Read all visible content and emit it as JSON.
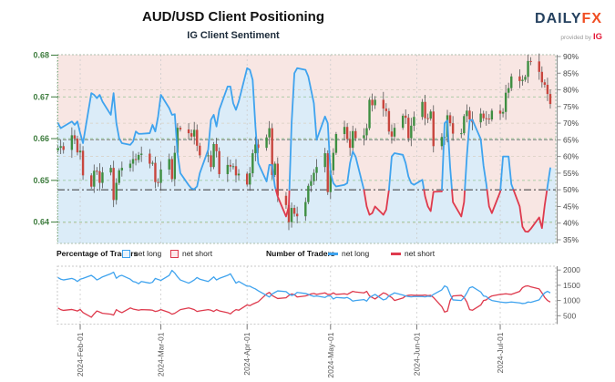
{
  "header": {
    "title": "AUD/USD Client Positioning",
    "subtitle": "IG Client Sentiment",
    "logo": {
      "brand_primary": "DAILY",
      "brand_accent": "FX",
      "provided_by": "provided by",
      "provider": "IG"
    }
  },
  "legend": {
    "percentage_title": "Percentage of Traders",
    "number_title": "Number of Traders",
    "net_long": "net long",
    "net_short": "net short"
  },
  "axes": {
    "price_ticks": [
      "0.68",
      "0.67",
      "0.66",
      "0.65",
      "0.64"
    ],
    "pct_ticks": [
      "90%",
      "85%",
      "80%",
      "75%",
      "70%",
      "65%",
      "60%",
      "55%",
      "50%",
      "45%",
      "40%",
      "35%"
    ],
    "traders_ticks": [
      "2000",
      "1500",
      "1000",
      "500"
    ],
    "date_ticks": [
      "2024-Feb-01",
      "2024-Mar-01",
      "2024-Apr-01",
      "2024-May-01",
      "2024-Jun-01",
      "2024-Jul-01"
    ]
  },
  "colors": {
    "line_long": "#3fa3ee",
    "line_short": "#de3a4d",
    "candle_up": "#3e8e41",
    "candle_down": "#c8463e",
    "wick": "#555555",
    "fill_above": "#f8e6e3",
    "fill_below": "#dbecf8",
    "grid_price": "#93c493",
    "grid_pct": "#d8cfc2",
    "ref_50": "#4a4a4a",
    "ref_65": "#9a9a9a",
    "axis_price": "#3c7b3c",
    "axis_pct": "#444444",
    "axis_traders": "#555555",
    "axis_dates": "#555555",
    "brand_navy": "#25415f",
    "brand_orange": "#f04e23",
    "provider_red": "#e31837"
  },
  "chart_data": {
    "type": "mixed",
    "title": "AUD/USD Client Positioning",
    "subtitle": "IG Client Sentiment",
    "start_date": "2024-01-24",
    "x_month_ticks": [
      "2024-02-01",
      "2024-03-01",
      "2024-04-01",
      "2024-05-01",
      "2024-06-01",
      "2024-07-01"
    ],
    "price_axis": {
      "side": "left",
      "ticks": [
        0.68,
        0.67,
        0.66,
        0.65,
        0.64
      ],
      "ylim": [
        0.6352,
        0.6805
      ]
    },
    "pct_axis": {
      "side": "right",
      "ticks": [
        90,
        85,
        80,
        75,
        70,
        65,
        60,
        55,
        50,
        45,
        40,
        35
      ],
      "ylim": [
        33.9,
        90.5
      ],
      "ref_line_dash_dot": 50,
      "ref_line_gray_dashed": 65
    },
    "traders_axis": {
      "side": "right",
      "ticks": [
        2000,
        1500,
        1000,
        500
      ],
      "ylim": [
        230,
        2120
      ]
    },
    "price_series": {
      "type": "candlestick",
      "name": "AUD/USD daily price",
      "first_open": 0.6572,
      "closes": [
        0.6578,
        0.6582,
        0.6573,
        0.6608,
        0.66,
        0.6567,
        0.6571,
        0.6512,
        0.6485,
        0.6523,
        0.6522,
        0.6494,
        0.6519,
        0.653,
        0.6453,
        0.6494,
        0.6524,
        0.653,
        0.654,
        0.6551,
        0.6549,
        0.6561,
        0.6564,
        0.654,
        0.6542,
        0.6496,
        0.6494,
        0.6526,
        0.6551,
        0.6503,
        0.6566,
        0.6626,
        0.6622,
        0.6613,
        0.6605,
        0.6621,
        0.6583,
        0.656,
        0.656,
        0.6532,
        0.6587,
        0.657,
        0.6515,
        0.6537,
        0.6533,
        0.6534,
        0.6512,
        0.6516,
        0.649,
        0.6517,
        0.6565,
        0.6586,
        0.6578,
        0.6603,
        0.6625,
        0.6513,
        0.654,
        0.6463,
        0.6441,
        0.64,
        0.6434,
        0.642,
        0.6414,
        0.6448,
        0.6487,
        0.6498,
        0.6518,
        0.6532,
        0.6565,
        0.6472,
        0.6524,
        0.6566,
        0.6611,
        0.6628,
        0.6599,
        0.6578,
        0.6618,
        0.6601,
        0.6608,
        0.6625,
        0.6693,
        0.668,
        0.6693,
        0.6672,
        0.6666,
        0.6617,
        0.6605,
        0.6626,
        0.6655,
        0.665,
        0.6601,
        0.6631,
        0.6652,
        0.6688,
        0.6649,
        0.6648,
        0.6665,
        0.6582,
        0.6604,
        0.6604,
        0.6656,
        0.6637,
        0.6612,
        0.6613,
        0.6654,
        0.6667,
        0.6646,
        0.6639,
        0.666,
        0.6649,
        0.6648,
        0.6646,
        0.6667,
        0.666,
        0.6664,
        0.671,
        0.6721,
        0.6749,
        0.6738,
        0.6741,
        0.6748,
        0.6786,
        0.6785,
        0.676,
        0.6735,
        0.6729,
        0.6707,
        0.6683
      ]
    },
    "sentiment_pct": {
      "type": "line",
      "name": "percent of traders net long",
      "blue_above": 50,
      "values": [
        70,
        68.5,
        69,
        70.5,
        69.5,
        70.5,
        67,
        64,
        79,
        78.5,
        77.5,
        78.5,
        76.5,
        72.5,
        79,
        70,
        65.5,
        64,
        63.5,
        64.5,
        67.5,
        66.8,
        66.8,
        67,
        69.5,
        67.5,
        72,
        78.5,
        74.5,
        72.5,
        72.7,
        61,
        55,
        51.4,
        50.4,
        50.2,
        51,
        55,
        62,
        71,
        72.5,
        69,
        74,
        81,
        81,
        76,
        74,
        76.5,
        86.5,
        86,
        83,
        69,
        58,
        52.5,
        57.5,
        57.4,
        51,
        48,
        42,
        45,
        70,
        85,
        86.5,
        86,
        84,
        80,
        76,
        65,
        72,
        70,
        55,
        52,
        51,
        51.5,
        52,
        58,
        61.5,
        60,
        50,
        45,
        42.5,
        43,
        45,
        42.5,
        44,
        50,
        60,
        61,
        60.5,
        58,
        54,
        52,
        51.5,
        53,
        48,
        45,
        43.6,
        49.4,
        49.5,
        70,
        70.8,
        56.7,
        46.3,
        42,
        46.3,
        60,
        70.8,
        71,
        65.2,
        57.2,
        51.7,
        45,
        43,
        49.4,
        60,
        60,
        60,
        51.7,
        45,
        38.9,
        37.5,
        37.4,
        38.3,
        41.7,
        38.5,
        45.4,
        51,
        56.5
      ]
    },
    "traders": {
      "type": "line",
      "series": [
        {
          "name": "net long",
          "values": [
            1755,
            1700,
            1675,
            1725,
            1690,
            1625,
            1700,
            1725,
            1825,
            1760,
            1675,
            1720,
            1775,
            1880,
            1930,
            1730,
            1800,
            1825,
            1700,
            1625,
            1600,
            1550,
            1625,
            1570,
            1600,
            1725,
            1690,
            1660,
            1825,
            1990,
            1900,
            1775,
            1675,
            1570,
            1620,
            1675,
            1755,
            1700,
            1625,
            1695,
            1775,
            1675,
            1725,
            1825,
            1877,
            1725,
            1570,
            1625,
            1470,
            1470,
            1420,
            1380,
            1320,
            1165,
            1115,
            1215,
            1265,
            1315,
            1290,
            1215,
            1165,
            1190,
            1265,
            1230,
            1200,
            1165,
            1135,
            1150,
            1100,
            1150,
            1150,
            1050,
            1100,
            1080,
            1100,
            1050,
            980,
            1000,
            1030,
            980,
            1100,
            1150,
            1200,
            1020,
            1050,
            1150,
            1200,
            1250,
            1180,
            1150,
            1130,
            1120,
            1130,
            1130,
            1120,
            1140,
            1130,
            1200,
            1350,
            1480,
            1430,
            1200,
            1020,
            1000,
            1100,
            1250,
            1420,
            1450,
            1280,
            1150,
            1130,
            1050,
            1000,
            950,
            940,
            930,
            940,
            950,
            920,
            900,
            910,
            950,
            940,
            1020,
            1150,
            1250,
            1300,
            1250
          ]
        },
        {
          "name": "net short",
          "values": [
            755,
            700,
            675,
            705,
            680,
            655,
            705,
            605,
            450,
            560,
            655,
            620,
            580,
            550,
            520,
            700,
            640,
            600,
            755,
            720,
            700,
            680,
            700,
            690,
            680,
            640,
            660,
            700,
            605,
            550,
            580,
            640,
            700,
            755,
            730,
            700,
            640,
            660,
            700,
            680,
            640,
            700,
            660,
            600,
            560,
            640,
            700,
            680,
            855,
            830,
            880,
            920,
            960,
            1215,
            1265,
            1165,
            1115,
            1065,
            1090,
            1165,
            1215,
            1190,
            1115,
            1150,
            1180,
            1215,
            1230,
            1200,
            1250,
            1200,
            1200,
            1250,
            1200,
            1220,
            1200,
            1250,
            1300,
            1280,
            1250,
            1300,
            1150,
            1100,
            1050,
            1250,
            1220,
            1150,
            1100,
            1000,
            1080,
            1150,
            1170,
            1180,
            1170,
            1170,
            1180,
            1160,
            1170,
            1100,
            800,
            620,
            650,
            1000,
            1150,
            1170,
            1100,
            950,
            700,
            680,
            850,
            1000,
            1020,
            1100,
            1150,
            1200,
            1210,
            1220,
            1210,
            1200,
            1300,
            1420,
            1470,
            1480,
            1450,
            1380,
            1250,
            1100,
            1000,
            950
          ]
        }
      ]
    }
  }
}
